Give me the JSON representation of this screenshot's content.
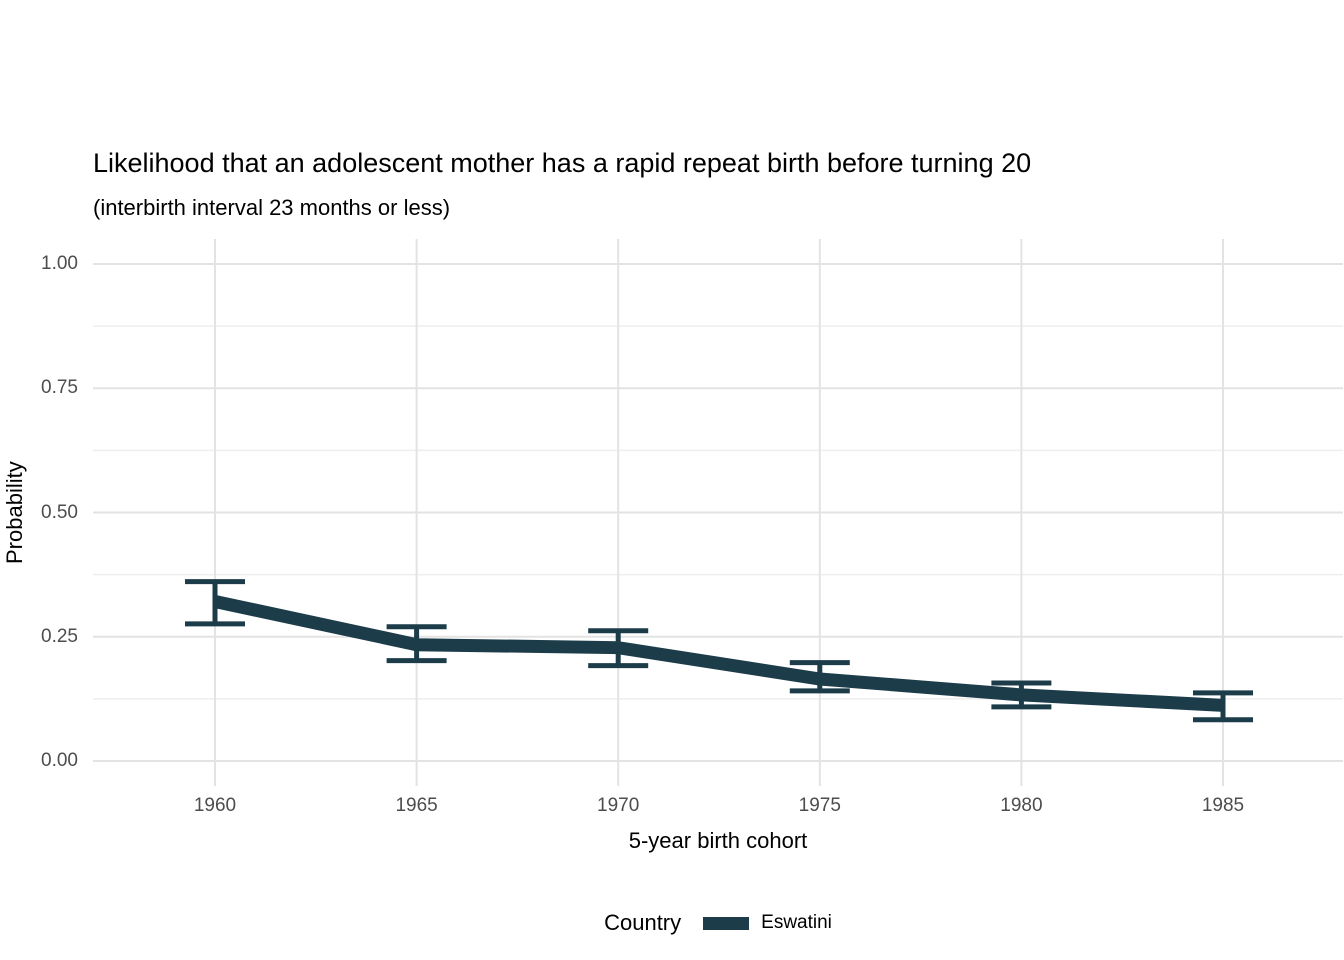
{
  "chart_data": {
    "type": "line",
    "title": "Likelihood that an adolescent mother has a rapid repeat birth before turning 20",
    "subtitle": "(interbirth interval 23 months or less)",
    "xlabel": "5-year birth cohort",
    "ylabel": "Probability",
    "categories": [
      "1960",
      "1965",
      "1970",
      "1975",
      "1980",
      "1985"
    ],
    "series": [
      {
        "name": "Eswatini",
        "color": "#1c3c49",
        "values": [
          0.321,
          0.234,
          0.228,
          0.165,
          0.133,
          0.112
        ],
        "ci_low": [
          0.276,
          0.202,
          0.192,
          0.141,
          0.109,
          0.083
        ],
        "ci_high": [
          0.361,
          0.27,
          0.262,
          0.198,
          0.157,
          0.137
        ]
      }
    ],
    "ylim": [
      0.0,
      1.0
    ],
    "yticks": [
      0.0,
      0.25,
      0.5,
      0.75,
      1.0
    ],
    "ytick_labels": [
      "0.00",
      "0.25",
      "0.50",
      "0.75",
      "1.00"
    ],
    "y_minor_ticks": [
      0.125,
      0.375,
      0.625,
      0.875
    ],
    "grid": "horizontal major+minor, vertical major only",
    "legend_position": "bottom",
    "colors": {
      "line": "#1c3c49",
      "grid_major": "#e3e3e3",
      "grid_minor": "#eeeeee",
      "axis_text": "#4d4d4d",
      "background": "#ffffff"
    }
  },
  "legend": {
    "title": "Country",
    "entries": [
      {
        "label": "Eswatini",
        "color": "#1c3c49"
      }
    ]
  }
}
